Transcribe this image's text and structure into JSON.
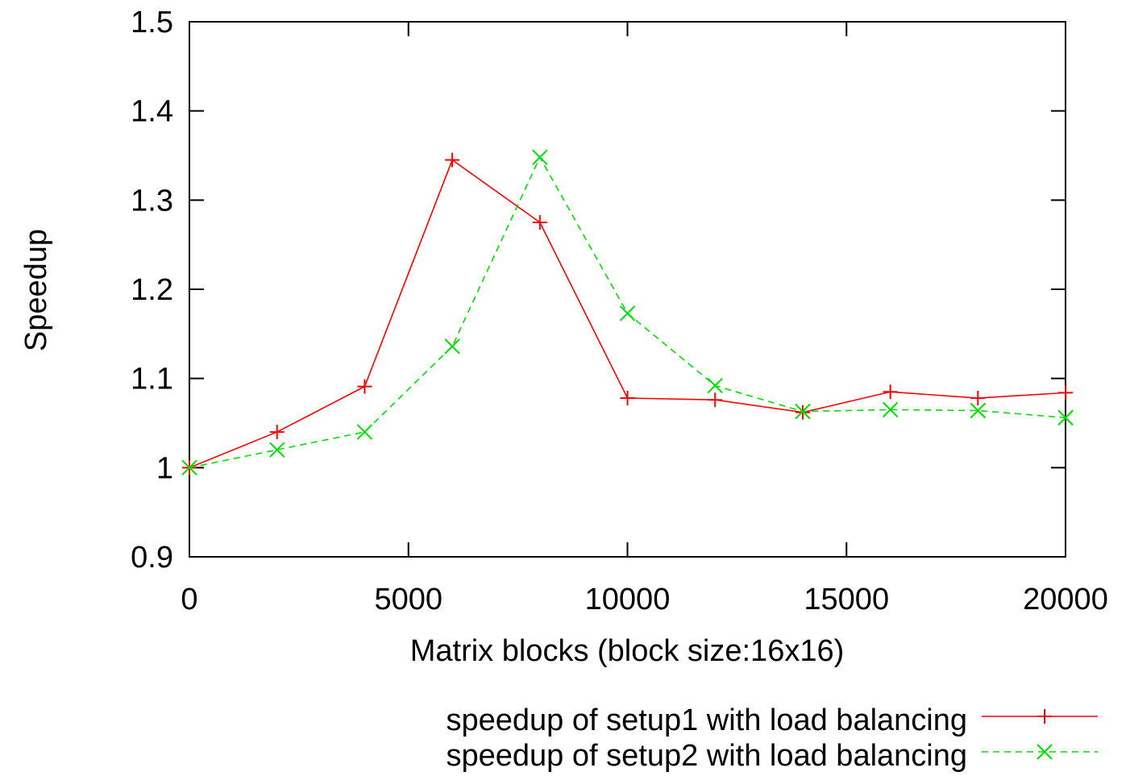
{
  "chart_data": {
    "type": "line",
    "title": "",
    "xlabel": "Matrix blocks (block size:16x16)",
    "ylabel": "Speedup",
    "xlim": [
      0,
      20000
    ],
    "ylim": [
      0.9,
      1.5
    ],
    "xticks": [
      0,
      5000,
      10000,
      15000,
      20000
    ],
    "xtick_labels": [
      "0",
      "5000",
      "10000",
      "15000",
      "20000"
    ],
    "yticks": [
      0.9,
      1.0,
      1.1,
      1.2,
      1.3,
      1.4,
      1.5
    ],
    "ytick_labels": [
      "0.9",
      "1",
      "1.1",
      "1.2",
      "1.3",
      "1.4",
      "1.5"
    ],
    "grid": false,
    "legend_position": "bottom-right, below plot",
    "x": [
      0,
      2000,
      4000,
      6000,
      8000,
      10000,
      12000,
      14000,
      16000,
      18000,
      20000
    ],
    "series": [
      {
        "name": "speedup of setup1 with load balancing",
        "color": "#ff0000",
        "line_style": "solid",
        "marker": "plus",
        "values": [
          1.0,
          1.04,
          1.091,
          1.345,
          1.275,
          1.078,
          1.076,
          1.062,
          1.085,
          1.078,
          1.084
        ]
      },
      {
        "name": "speedup of setup2 with load balancing",
        "color": "#00dd00",
        "line_style": "dashed",
        "marker": "cross",
        "values": [
          1.0,
          1.02,
          1.04,
          1.136,
          1.348,
          1.173,
          1.092,
          1.063,
          1.065,
          1.064,
          1.056
        ]
      }
    ]
  }
}
